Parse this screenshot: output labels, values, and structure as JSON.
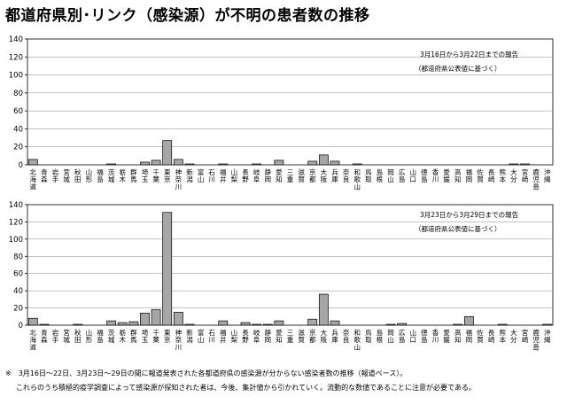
{
  "page": {
    "title": "都道府県別･リンク（感染源）が不明の患者数の推移",
    "footnote_1": "※　3月16日～22日、3月23日～29日の間に報道発表された各都道府県の感染源が分からない感染者数の推移（報道ベース）。",
    "footnote_2": "これらのうち積極的疫学調査によって感染源が探知された者は、今後、集計値から引かれていく。流動的な数値であることに注意が必要である。"
  },
  "colors": {
    "bar_fill": "#a6a6a6",
    "bar_stroke": "#000000",
    "grid": "#a0a0a0",
    "axis": "#000000"
  },
  "chart_data": [
    {
      "type": "bar",
      "title": "",
      "xlabel": "",
      "ylabel": "",
      "ylim": [
        0,
        140
      ],
      "yticks": [
        0,
        20,
        40,
        60,
        80,
        100,
        120,
        140
      ],
      "grid": true,
      "legend": "none",
      "annotation": [
        "3月16日から3月22日までの報告",
        "（都道府県公表値に基づく）"
      ],
      "categories": [
        "北海道",
        "青森",
        "岩手",
        "宮城",
        "秋田",
        "山形",
        "福島",
        "茨城",
        "栃木",
        "群馬",
        "埼玉",
        "千葉",
        "東京",
        "神奈川",
        "新潟",
        "富山",
        "石川",
        "福井",
        "山梨",
        "長野",
        "岐阜",
        "静岡",
        "愛知",
        "三重",
        "滋賀",
        "京都",
        "大阪",
        "兵庫",
        "奈良",
        "和歌山",
        "鳥取",
        "島根",
        "岡山",
        "広島",
        "山口",
        "徳島",
        "香川",
        "愛媛",
        "高知",
        "福岡",
        "佐賀",
        "長崎",
        "熊本",
        "大分",
        "宮崎",
        "鹿児島",
        "沖縄"
      ],
      "values": [
        6,
        0,
        0,
        0,
        0,
        0,
        0,
        1,
        0,
        0,
        3,
        5,
        27,
        6,
        1,
        0,
        0,
        1,
        0,
        0,
        1,
        0,
        5,
        0,
        0,
        4,
        11,
        4,
        0,
        1,
        0,
        0,
        0,
        0,
        0,
        0,
        0,
        0,
        0,
        0,
        0,
        0,
        0,
        1,
        1,
        0,
        0
      ]
    },
    {
      "type": "bar",
      "title": "",
      "xlabel": "",
      "ylabel": "",
      "ylim": [
        0,
        140
      ],
      "yticks": [
        0,
        20,
        40,
        60,
        80,
        100,
        120,
        140
      ],
      "grid": true,
      "legend": "none",
      "annotation": [
        "3月23日から3月29日までの報告",
        "（都道府県公表値に基づく）"
      ],
      "categories": [
        "北海道",
        "青森",
        "岩手",
        "宮城",
        "秋田",
        "山形",
        "福島",
        "茨城",
        "栃木",
        "群馬",
        "埼玉",
        "千葉",
        "東京",
        "神奈川",
        "新潟",
        "富山",
        "石川",
        "福井",
        "山梨",
        "長野",
        "岐阜",
        "静岡",
        "愛知",
        "三重",
        "滋賀",
        "京都",
        "大阪",
        "兵庫",
        "奈良",
        "和歌山",
        "鳥取",
        "島根",
        "岡山",
        "広島",
        "山口",
        "徳島",
        "香川",
        "愛媛",
        "高知",
        "福岡",
        "佐賀",
        "長崎",
        "熊本",
        "大分",
        "宮崎",
        "鹿児島",
        "沖縄"
      ],
      "values": [
        8,
        1,
        0,
        0,
        1,
        0,
        0,
        5,
        3,
        4,
        14,
        18,
        131,
        15,
        1,
        0,
        0,
        5,
        0,
        3,
        1,
        1,
        5,
        0,
        0,
        7,
        36,
        5,
        0,
        0,
        0,
        0,
        1,
        2,
        0,
        0,
        0,
        0,
        1,
        10,
        0,
        0,
        1,
        0,
        0,
        0,
        1
      ]
    }
  ]
}
